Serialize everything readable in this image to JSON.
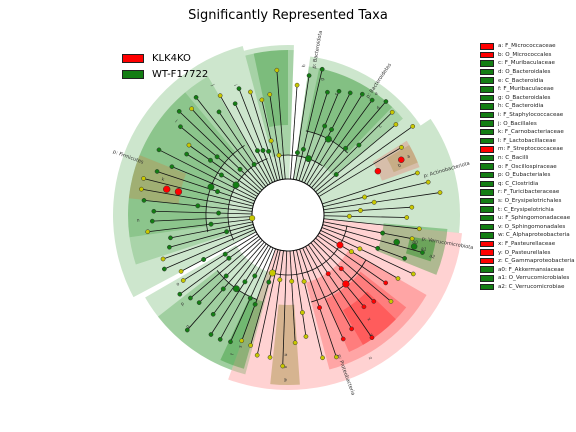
{
  "chart_data": {
    "type": "cladogram",
    "title": "Significantly Represented Taxa",
    "colors": {
      "KLK4KO": "#ff0000",
      "WT-F17722": "#137d13",
      "neutral": "#c8c800",
      "clade_green": "#1a8c1a",
      "clade_red": "#ff2020",
      "clade_tan": "#b49a5a"
    },
    "groups": [
      {
        "name": "KLK4KO",
        "color": "#ff0000"
      },
      {
        "name": "WT-F17722",
        "color": "#137d13"
      }
    ],
    "taxa": [
      {
        "key": "a",
        "label": "a: F_Micrococcaceae",
        "group": "KLK4KO"
      },
      {
        "key": "b",
        "label": "b: O_Micrococcales",
        "group": "KLK4KO"
      },
      {
        "key": "c",
        "label": "c: F_Muribaculaceae",
        "group": "WT-F17722"
      },
      {
        "key": "d",
        "label": "d: O_Bacteroidales",
        "group": "WT-F17722"
      },
      {
        "key": "e",
        "label": "e: C_Bacteroidia",
        "group": "WT-F17722"
      },
      {
        "key": "f",
        "label": "f: F_Muribaculaceae",
        "group": "WT-F17722"
      },
      {
        "key": "g",
        "label": "g: O_Bacteroidales",
        "group": "WT-F17722"
      },
      {
        "key": "h",
        "label": "h: C_Bacteroidia",
        "group": "WT-F17722"
      },
      {
        "key": "i",
        "label": "i: F_Staphylococcaceae",
        "group": "WT-F17722"
      },
      {
        "key": "j",
        "label": "j: O_Bacillales",
        "group": "WT-F17722"
      },
      {
        "key": "k",
        "label": "k: F_Carnobacteriaceae",
        "group": "WT-F17722"
      },
      {
        "key": "l",
        "label": "l: F_Lactobacillaceae",
        "group": "WT-F17722"
      },
      {
        "key": "m",
        "label": "m: F_Streptococcaceae",
        "group": "KLK4KO"
      },
      {
        "key": "n",
        "label": "n: C_Bacilli",
        "group": "WT-F17722"
      },
      {
        "key": "o",
        "label": "o: F_Oscillospiraceae",
        "group": "WT-F17722"
      },
      {
        "key": "p",
        "label": "p: O_Eubacteriales",
        "group": "WT-F17722"
      },
      {
        "key": "q",
        "label": "q: C_Clostridia",
        "group": "WT-F17722"
      },
      {
        "key": "r",
        "label": "r: F_Turicibacteraceae",
        "group": "WT-F17722"
      },
      {
        "key": "s",
        "label": "s: O_Erysipelotrichales",
        "group": "WT-F17722"
      },
      {
        "key": "t",
        "label": "t: C_Erysipelotrichia",
        "group": "WT-F17722"
      },
      {
        "key": "u",
        "label": "u: F_Sphingomonadaceae",
        "group": "WT-F17722"
      },
      {
        "key": "v",
        "label": "v: O_Sphingomonadales",
        "group": "WT-F17722"
      },
      {
        "key": "w",
        "label": "w: C_Alphaproteobacteria",
        "group": "WT-F17722"
      },
      {
        "key": "x",
        "label": "x: F_Pasteurellaceae",
        "group": "KLK4KO"
      },
      {
        "key": "y",
        "label": "y: O_Pasteurellales",
        "group": "KLK4KO"
      },
      {
        "key": "z",
        "label": "z: C_Gammaproteobacteria",
        "group": "KLK4KO"
      },
      {
        "key": "a0",
        "label": "a0: F_Akkermansiaceae",
        "group": "WT-F17722"
      },
      {
        "key": "a1",
        "label": "a1: O_Verrucomicrobiales",
        "group": "WT-F17722"
      },
      {
        "key": "a2",
        "label": "a2: C_Verrucomicrobiae",
        "group": "WT-F17722"
      }
    ],
    "phyla": [
      {
        "name": "p: Bacteroidota",
        "group": "WT-F17722"
      },
      {
        "name": "p: Bacteroidetes",
        "group": "WT-F17722"
      },
      {
        "name": "p: Actinobacteriota",
        "group": "KLK4KO"
      },
      {
        "name": "p: Firmicutes",
        "group": "WT-F17722"
      },
      {
        "name": "p: Proteobacteria",
        "group": "KLK4KO"
      },
      {
        "name": "p: Verrucomicrobiota",
        "group": "WT-F17722"
      }
    ],
    "legend_placement": "top-left and right"
  }
}
